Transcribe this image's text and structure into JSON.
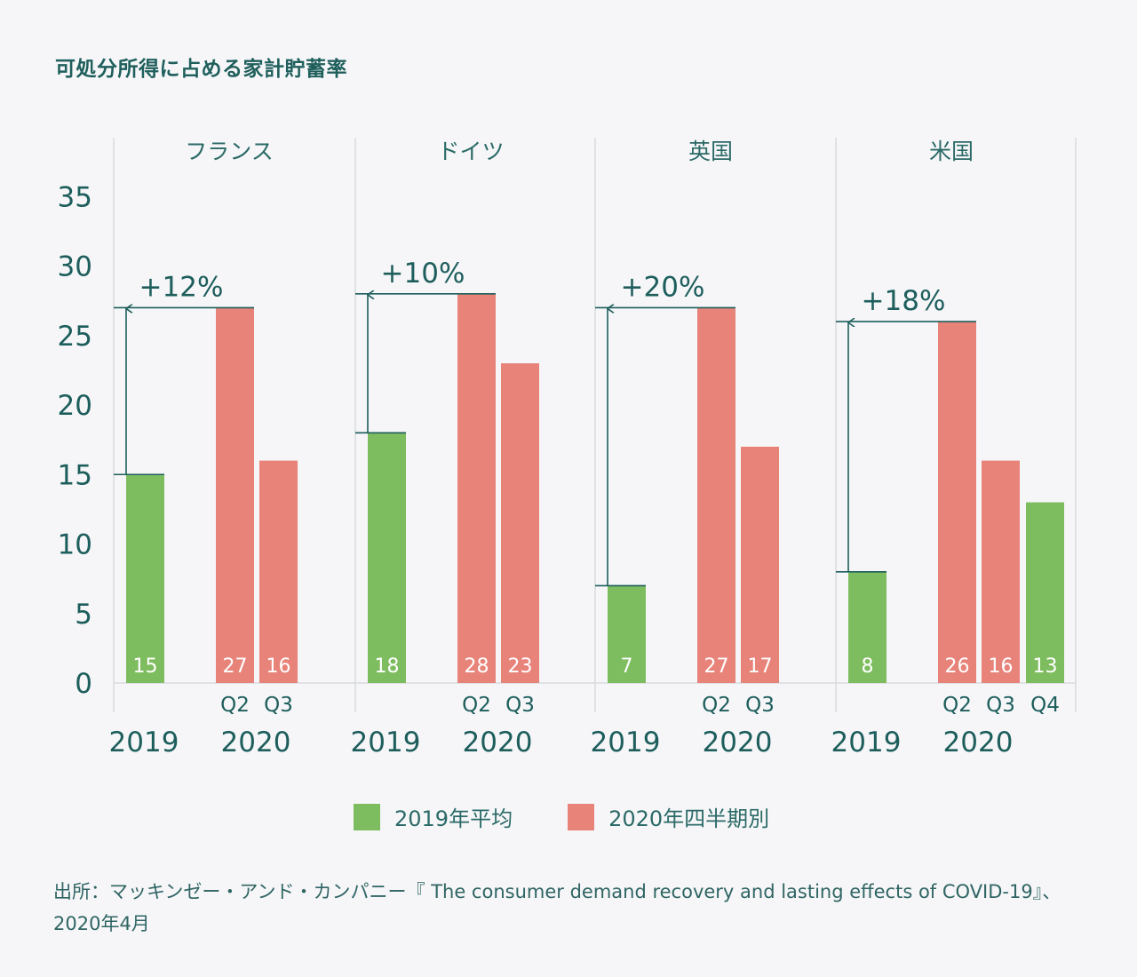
{
  "title": "可処分所得に占める家計貯蓄率",
  "chart_data": {
    "type": "bar",
    "title": "可処分所得に占める家計貯蓄率",
    "ylim": [
      0,
      35
    ],
    "yticks": [
      0,
      5,
      10,
      15,
      20,
      25,
      30,
      35
    ],
    "grid": false,
    "colors": {
      "2019": "#7ebd5f",
      "2020": "#e8837a",
      "line": "#1d5e5c",
      "axis": "#d8dade"
    },
    "legend": [
      {
        "label": "2019年平均",
        "color": "#7ebd5f"
      },
      {
        "label": "2020年四半期別",
        "color": "#e8837a"
      }
    ],
    "panels": [
      {
        "name": "フランス",
        "change_label": "+12%",
        "year_labels": [
          "2019",
          "2020"
        ],
        "bars": [
          {
            "quarter": "",
            "value": 15,
            "color": "#7ebd5f"
          },
          {
            "quarter": "Q2",
            "value": 27,
            "color": "#e8837a"
          },
          {
            "quarter": "Q3",
            "value": 16,
            "color": "#e8837a"
          }
        ]
      },
      {
        "name": "ドイツ",
        "change_label": "+10%",
        "year_labels": [
          "2019",
          "2020"
        ],
        "bars": [
          {
            "quarter": "",
            "value": 18,
            "color": "#7ebd5f"
          },
          {
            "quarter": "Q2",
            "value": 28,
            "color": "#e8837a"
          },
          {
            "quarter": "Q3",
            "value": 23,
            "color": "#e8837a"
          }
        ]
      },
      {
        "name": "英国",
        "change_label": "+20%",
        "year_labels": [
          "2019",
          "2020"
        ],
        "bars": [
          {
            "quarter": "",
            "value": 7,
            "color": "#7ebd5f"
          },
          {
            "quarter": "Q2",
            "value": 27,
            "color": "#e8837a"
          },
          {
            "quarter": "Q3",
            "value": 17,
            "color": "#e8837a"
          }
        ]
      },
      {
        "name": "米国",
        "change_label": "+18%",
        "year_labels": [
          "2019",
          "2020"
        ],
        "bars": [
          {
            "quarter": "",
            "value": 8,
            "color": "#7ebd5f"
          },
          {
            "quarter": "Q2",
            "value": 26,
            "color": "#e8837a"
          },
          {
            "quarter": "Q3",
            "value": 16,
            "color": "#e8837a"
          },
          {
            "quarter": "Q4",
            "value": 13,
            "color": "#7ebd5f"
          }
        ]
      }
    ]
  },
  "source": {
    "line1": "出所：マッキンゼー・アンド・カンパニー『 The consumer demand recovery and lasting effects of COVID-19』、",
    "line2": "2020年4月"
  }
}
